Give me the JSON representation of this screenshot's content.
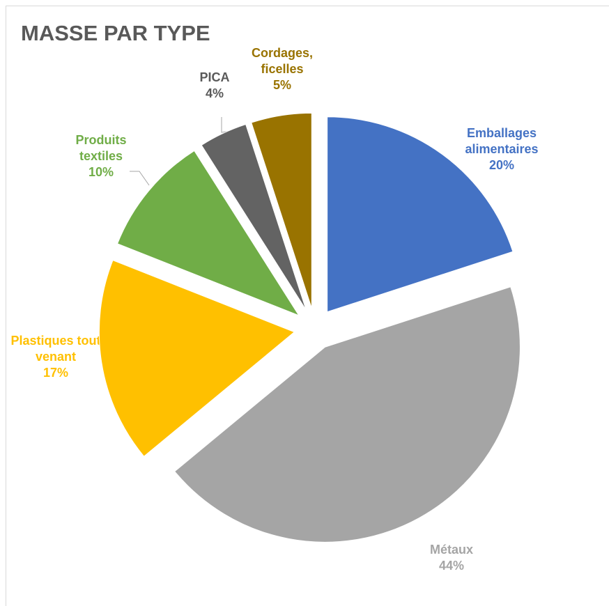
{
  "chart_data": {
    "type": "pie",
    "title": "MASSE PAR TYPE",
    "categories": [
      "Emballages alimentaires",
      "Métaux",
      "Plastiques tout venant",
      "Produits textiles",
      "PICA",
      "Cordages, ficelles"
    ],
    "values": [
      20,
      44,
      17,
      10,
      4,
      5
    ],
    "value_labels": [
      "20%",
      "44%",
      "17%",
      "10%",
      "4%",
      "5%"
    ],
    "colors": [
      "#4472c4",
      "#a5a5a5",
      "#ffc000",
      "#70ad47",
      "#636363",
      "#997300"
    ]
  }
}
